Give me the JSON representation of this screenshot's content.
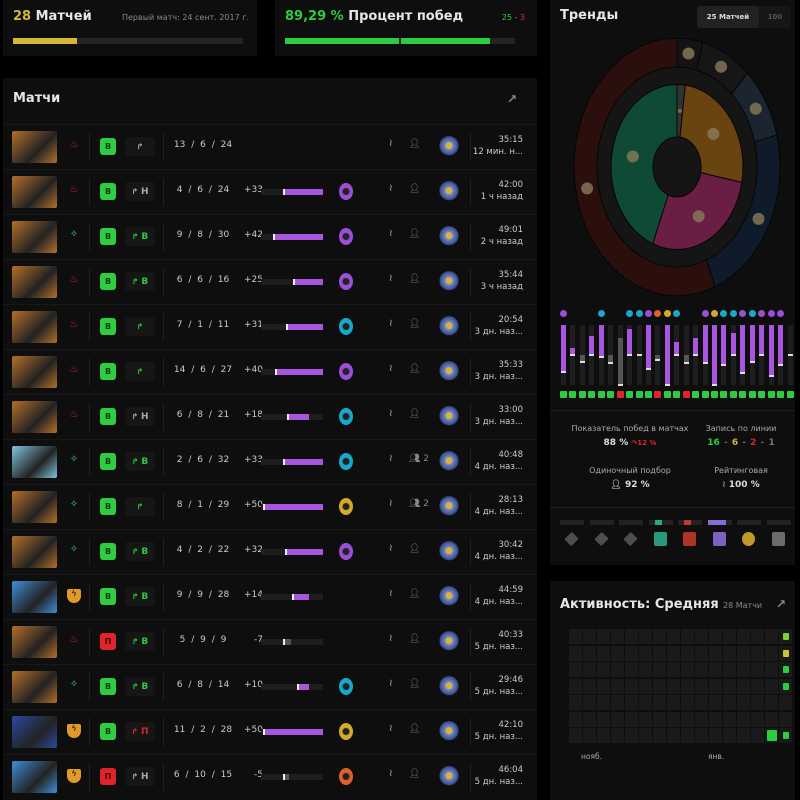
{
  "summary": {
    "matches_count": "28",
    "matches_label": "Матчей",
    "first_match": "Первый матч: 24 сент. 2017 г.",
    "matches_progress": 0.28,
    "winrate": "89,29 %",
    "winrate_label": "Процент побед",
    "wins": "25",
    "sep": " - ",
    "losses": "3",
    "colors": {
      "gold": "#d4b63a",
      "green": "#2ecc40",
      "red": "#e0242c"
    }
  },
  "matches": {
    "title": "Матчи",
    "rows": [
      {
        "hero": "warlock-hero",
        "hc": "#b4702a",
        "role": "fire-hand",
        "rc": "#e0242c",
        "result": "В",
        "win": true,
        "lane": "",
        "lc": "#aaa",
        "k": "13",
        "d": "6",
        "a": "24",
        "delta": "",
        "dv": 0,
        "medal": "",
        "party": "",
        "duration": "35:15",
        "time": "12 мин. н..."
      },
      {
        "hero": "warlock-hero",
        "hc": "#b4702a",
        "role": "fire-hand",
        "rc": "#e0242c",
        "result": "В",
        "win": true,
        "lane": "Н",
        "lc": "#aaa",
        "k": "4",
        "d": "6",
        "a": "24",
        "delta": "+33",
        "dv": 33,
        "medal": "#9b4fd6",
        "party": "",
        "duration": "42:00",
        "time": "1 ч назад"
      },
      {
        "hero": "warlock-hero",
        "hc": "#b4702a",
        "role": "sparkle-hand",
        "rc": "#3ccf78",
        "result": "В",
        "win": true,
        "lane": "В",
        "lc": "#2ecc40",
        "k": "9",
        "d": "8",
        "a": "30",
        "delta": "+42",
        "dv": 42,
        "medal": "#9b4fd6",
        "party": "",
        "duration": "49:01",
        "time": "2 ч назад"
      },
      {
        "hero": "warlock-hero",
        "hc": "#b4702a",
        "role": "fire-hand",
        "rc": "#e0242c",
        "result": "В",
        "win": true,
        "lane": "В",
        "lc": "#2ecc40",
        "k": "6",
        "d": "6",
        "a": "16",
        "delta": "+25",
        "dv": 25,
        "medal": "#9b4fd6",
        "party": "",
        "duration": "35:44",
        "time": "3 ч назад"
      },
      {
        "hero": "warlock-hero",
        "hc": "#b4702a",
        "role": "fire-hand",
        "rc": "#e0242c",
        "result": "В",
        "win": true,
        "lane": "",
        "lc": "#2ecc40",
        "k": "7",
        "d": "1",
        "a": "11",
        "delta": "+31",
        "dv": 31,
        "medal": "#17a9c9",
        "party": "",
        "duration": "20:54",
        "time": "3 дн. наз..."
      },
      {
        "hero": "warlock-hero",
        "hc": "#b4702a",
        "role": "fire-hand",
        "rc": "#e0242c",
        "result": "В",
        "win": true,
        "lane": "",
        "lc": "#2ecc40",
        "k": "14",
        "d": "6",
        "a": "27",
        "delta": "+40",
        "dv": 40,
        "medal": "#9b4fd6",
        "party": "",
        "duration": "35:33",
        "time": "3 дн. наз..."
      },
      {
        "hero": "warlock-hero",
        "hc": "#b4702a",
        "role": "fire-hand",
        "rc": "#e0242c",
        "result": "В",
        "win": true,
        "lane": "Н",
        "lc": "#aaa",
        "k": "6",
        "d": "8",
        "a": "21",
        "delta": "+18",
        "dv": 18,
        "medal": "#17a9c9",
        "party": "",
        "duration": "33:00",
        "time": "3 дн. наз..."
      },
      {
        "hero": "crystal-maiden-hero",
        "hc": "#7fc6e0",
        "role": "sparkle-hand",
        "rc": "#3ccf78",
        "result": "В",
        "win": true,
        "lane": "В",
        "lc": "#2ecc40",
        "k": "2",
        "d": "6",
        "a": "32",
        "delta": "+33",
        "dv": 33,
        "medal": "#17a9c9",
        "party": "2",
        "duration": "40:48",
        "time": "4 дн. наз..."
      },
      {
        "hero": "warlock-hero",
        "hc": "#b4702a",
        "role": "sparkle-hand",
        "rc": "#3ccf78",
        "result": "В",
        "win": true,
        "lane": "",
        "lc": "#2ecc40",
        "k": "8",
        "d": "1",
        "a": "29",
        "delta": "+50",
        "dv": 50,
        "medal": "#d4aa2a",
        "party": "2",
        "duration": "28:13",
        "time": "4 дн. наз..."
      },
      {
        "hero": "warlock-hero",
        "hc": "#b4702a",
        "role": "sparkle-hand",
        "rc": "#3ccf78",
        "result": "В",
        "win": true,
        "lane": "В",
        "lc": "#2ecc40",
        "k": "4",
        "d": "2",
        "a": "22",
        "delta": "+32",
        "dv": 32,
        "medal": "#9b4fd6",
        "party": "",
        "duration": "30:42",
        "time": "4 дн. наз..."
      },
      {
        "hero": "zeus-hero",
        "hc": "#3f8fd8",
        "role": "shield",
        "rc": "#e09a2a",
        "result": "В",
        "win": true,
        "lane": "В",
        "lc": "#2ecc40",
        "k": "9",
        "d": "9",
        "a": "28",
        "delta": "+14",
        "dv": 14,
        "medal": "",
        "party": "",
        "duration": "44:59",
        "time": "4 дн. наз..."
      },
      {
        "hero": "warlock-hero",
        "hc": "#b4702a",
        "role": "fire-hand",
        "rc": "#e0242c",
        "result": "П",
        "win": false,
        "lane": "В",
        "lc": "#2ecc40",
        "k": "5",
        "d": "9",
        "a": "9",
        "delta": "-7",
        "dv": -7,
        "medal": "",
        "party": "",
        "duration": "40:33",
        "time": "5 дн. наз..."
      },
      {
        "hero": "warlock-hero",
        "hc": "#b4702a",
        "role": "sparkle-hand",
        "rc": "#3ccf78",
        "result": "В",
        "win": true,
        "lane": "В",
        "lc": "#2ecc40",
        "k": "6",
        "d": "8",
        "a": "14",
        "delta": "+10",
        "dv": 10,
        "medal": "#17a9c9",
        "party": "",
        "duration": "29:46",
        "time": "5 дн. наз..."
      },
      {
        "hero": "vengeful-spirit-hero",
        "hc": "#2a4aa0",
        "role": "shield",
        "rc": "#e09a2a",
        "result": "В",
        "win": true,
        "lane": "П",
        "lc": "#e0242c",
        "k": "11",
        "d": "2",
        "a": "28",
        "delta": "+50",
        "dv": 50,
        "medal": "#d4aa2a",
        "party": "",
        "duration": "42:10",
        "time": "5 дн. наз..."
      },
      {
        "hero": "zeus-hero",
        "hc": "#3f8fd8",
        "role": "shield",
        "rc": "#e09a2a",
        "result": "П",
        "win": false,
        "lane": "Н",
        "lc": "#aaa",
        "k": "6",
        "d": "10",
        "a": "15",
        "delta": "-5",
        "dv": -5,
        "medal": "#e0602a",
        "party": "",
        "duration": "46:04",
        "time": "5 дн. наз..."
      }
    ]
  },
  "trends": {
    "title": "Тренды",
    "tabs": [
      {
        "label": "25 Матчей",
        "active": true
      },
      {
        "label": "100",
        "active": false
      }
    ],
    "outer_ring": [
      {
        "hero": "small-blue-hero",
        "share": 4,
        "color": "#141414"
      },
      {
        "hero": "hero-2",
        "share": 8,
        "color": "#161616"
      },
      {
        "hero": "hero-3",
        "share": 9,
        "color": "#1a2530"
      },
      {
        "hero": "zeus-hero",
        "share": 23,
        "color": "#0f1b2a"
      },
      {
        "hero": "warlock-hero",
        "share": 56,
        "color": "#2a0f0c"
      }
    ],
    "inner_ring": [
      {
        "role": "unknown",
        "share": 2,
        "color": "#333"
      },
      {
        "role": "shield",
        "share": 26,
        "color": "#6a4410"
      },
      {
        "role": "fire-hand",
        "share": 28,
        "color": "#6a1e44"
      },
      {
        "role": "sparkle-hand",
        "share": 44,
        "color": "#0f4a34"
      }
    ],
    "bars": [
      [
        0,
        78
      ],
      [
        39,
        50
      ],
      [
        50,
        61
      ],
      [
        18,
        50
      ],
      [
        0,
        54
      ],
      [
        50,
        64
      ],
      [
        22,
        100
      ],
      [
        6,
        50
      ],
      [
        50,
        50
      ],
      [
        0,
        74
      ],
      [
        50,
        58
      ],
      [
        0,
        100
      ],
      [
        29,
        50
      ],
      [
        50,
        64
      ],
      [
        22,
        50
      ],
      [
        0,
        63
      ],
      [
        0,
        100
      ],
      [
        0,
        67
      ],
      [
        14,
        50
      ],
      [
        0,
        80
      ],
      [
        0,
        61
      ],
      [
        0,
        50
      ],
      [
        0,
        85
      ],
      [
        0,
        67
      ],
      [
        50,
        50
      ]
    ],
    "bar_win": [
      1,
      1,
      1,
      1,
      1,
      1,
      0,
      1,
      1,
      1,
      0,
      1,
      1,
      0,
      1,
      1,
      1,
      1,
      1,
      1,
      1,
      1,
      1,
      1,
      1
    ],
    "bar_medals": [
      "#9b4fd6",
      "",
      "",
      "",
      "#17a9c9",
      "",
      "",
      "#17a9c9",
      "#17a9c9",
      "#9b4fd6",
      "#e0602a",
      "#d4aa2a",
      "#17a9c9",
      "",
      "",
      "#9b4fd6",
      "#d4aa2a",
      "#17a9c9",
      "#17a9c9",
      "#9b4fd6",
      "#17a9c9",
      "#9b4fd6",
      "#9b4fd6",
      "#9b4fd6",
      ""
    ],
    "stats": {
      "winrate_label": "Показатель побед в матчах",
      "winrate": "88 %",
      "trend": "12 %",
      "lane_label": "Запись по линии",
      "lane_w": "16",
      "lane_d": "6",
      "lane_l": "2",
      "lane_n": "1",
      "dash": "-",
      "solo_label": "Одиночный подбор",
      "solo": "92 %",
      "ranked_label": "Рейтинговая",
      "ranked": "100 %"
    },
    "rank_icons": [
      {
        "name": "herald",
        "color": "#555"
      },
      {
        "name": "guardian",
        "color": "#555"
      },
      {
        "name": "crusader",
        "color": "#555"
      },
      {
        "name": "archon",
        "color": "#2aa88a"
      },
      {
        "name": "legend",
        "color": "#c0392b"
      },
      {
        "name": "ancient",
        "color": "#8a6ad6"
      },
      {
        "name": "divine",
        "color": "#d4aa2a"
      },
      {
        "name": "immortal",
        "color": "#777"
      }
    ]
  },
  "activity": {
    "title": "Активность: Средняя",
    "count": "28 Матчи",
    "months": [
      "нояб.",
      "янв."
    ],
    "active_cells": [
      {
        "col": 15,
        "row": 0,
        "color": "#7ad23a"
      },
      {
        "col": 15,
        "row": 1,
        "color": "#c8c830"
      },
      {
        "col": 15,
        "row": 2,
        "color": "#2ecc40"
      },
      {
        "col": 15,
        "row": 3,
        "color": "#2ecc40"
      },
      {
        "col": 15,
        "row": 6,
        "color": "#2ecc40"
      },
      {
        "col": 14,
        "row": 6,
        "color": "#2ecc40"
      }
    ]
  }
}
